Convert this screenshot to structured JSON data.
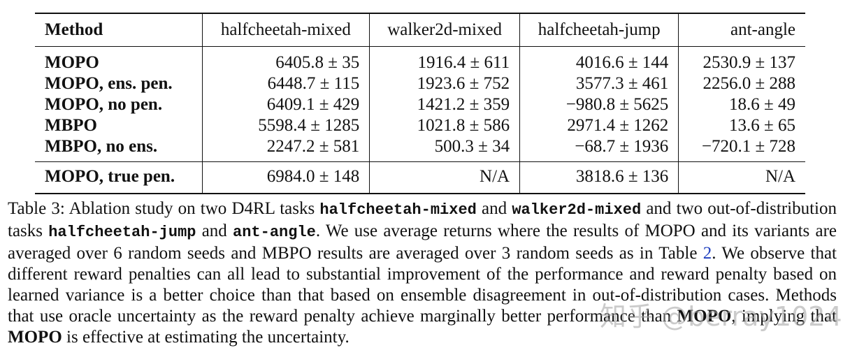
{
  "table": {
    "headers": [
      "Method",
      "halfcheetah-mixed",
      "walker2d-mixed",
      "halfcheetah-jump",
      "ant-angle"
    ],
    "rows": [
      {
        "method": "MOPO",
        "values": [
          "6405.8 ± 35",
          "1916.4 ± 611",
          "4016.6 ± 144",
          "2530.9 ± 137"
        ]
      },
      {
        "method": "MOPO, ens. pen.",
        "values": [
          "6448.7 ± 115",
          "1923.6 ± 752",
          "3577.3 ± 461",
          "2256.0 ± 288"
        ]
      },
      {
        "method": "MOPO, no pen.",
        "values": [
          "6409.1 ± 429",
          "1421.2 ± 359",
          "−980.8 ± 5625",
          "18.6 ± 49"
        ]
      },
      {
        "method": "MBPO",
        "values": [
          "5598.4 ± 1285",
          "1021.8 ± 586",
          "2971.4 ± 1262",
          "13.6 ± 65"
        ]
      },
      {
        "method": "MBPO, no ens.",
        "values": [
          "2247.2 ± 581",
          "500.3 ± 34",
          "−68.7 ± 1936",
          "−720.1 ± 728"
        ]
      }
    ],
    "true_row": {
      "method": "MOPO, true pen.",
      "values": [
        "6984.0 ± 148",
        "N/A",
        "3818.6 ± 136",
        "N/A"
      ]
    }
  },
  "caption": {
    "label": "Table 3:",
    "t1": " Ablation study on two D4RL tasks ",
    "code1": "halfcheetah-mixed",
    "t2": " and ",
    "code2": "walker2d-mixed",
    "t3": " and two out-of-distribution tasks ",
    "code3": "halfcheetah-jump",
    "t4": " and ",
    "code4": "ant-angle",
    "t5": ". We use average returns where the results of MOPO and its variants are averaged over 6 random seeds and MBPO results are averaged over 3 random seeds as in Table ",
    "ref": "2",
    "t6": ". We observe that different reward penalties can all lead to substantial improvement of the performance and reward penalty based on learned variance is a better choice than that based on ensemble disagreement in out-of-distribution cases. Methods that use oracle uncertainty as the reward penalty achieve marginally better performance than ",
    "bold1": "MOPO",
    "t7": ", implying that ",
    "bold2": "MOPO",
    "t8": " is effective at estimating the uncertainty."
  },
  "watermark": "知乎 @berray1024"
}
